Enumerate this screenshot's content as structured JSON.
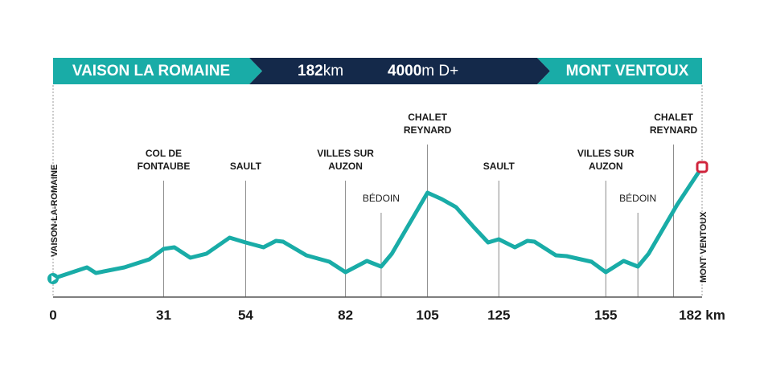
{
  "header": {
    "start": "VAISON LA ROMAINE",
    "distance": "182",
    "distance_unit": "km",
    "climb": "4000",
    "climb_unit": "m D+",
    "finish": "MONT VENTOUX"
  },
  "chart_data": {
    "type": "line",
    "x": [
      0,
      9.5,
      12,
      20,
      27,
      31,
      34,
      38.5,
      43,
      49.5,
      54,
      59,
      62.5,
      64.5,
      71,
      77.5,
      82,
      88,
      92,
      95,
      100,
      105,
      109,
      113,
      118,
      122,
      125,
      129.5,
      133,
      135,
      141,
      144,
      151,
      155,
      160,
      164,
      167,
      175,
      182
    ],
    "series": [
      {
        "color": "#19aca7",
        "values": [
          230,
          370,
          300,
          370,
          470,
          600,
          620,
          490,
          540,
          740,
          680,
          620,
          700,
          690,
          520,
          440,
          310,
          450,
          380,
          540,
          920,
          1300,
          1220,
          1120,
          870,
          680,
          720,
          620,
          700,
          690,
          520,
          510,
          440,
          310,
          450,
          380,
          540,
          1150,
          1620
        ]
      }
    ],
    "xlim": [
      0,
      182
    ],
    "ylim": [
      0,
      1800
    ],
    "xticks": [
      0,
      31,
      54,
      82,
      105,
      125,
      155,
      {
        "value": 182,
        "label": "182 km"
      }
    ],
    "start_label": "VAISON-LA-ROMAINE",
    "end_label": "MONT VENTOUX",
    "annotations": [
      {
        "x": 31,
        "lines": [
          "COL DE",
          "FONTAUBE"
        ],
        "bold": true
      },
      {
        "x": 54,
        "lines": [
          "SAULT"
        ],
        "bold": true
      },
      {
        "x": 82,
        "lines": [
          "VILLES SUR",
          "AUZON"
        ],
        "bold": true
      },
      {
        "x": 92,
        "lines": [
          "BÉDOIN"
        ],
        "bold": false
      },
      {
        "x": 105,
        "lines": [
          "CHALET",
          "REYNARD"
        ],
        "bold": true
      },
      {
        "x": 125,
        "lines": [
          "SAULT"
        ],
        "bold": true
      },
      {
        "x": 155,
        "lines": [
          "VILLES SUR",
          "AUZON"
        ],
        "bold": true
      },
      {
        "x": 164,
        "lines": [
          "BÉDOIN"
        ],
        "bold": false
      },
      {
        "x": 174,
        "lines": [
          "CHALET",
          "REYNARD"
        ],
        "bold": true
      }
    ]
  }
}
